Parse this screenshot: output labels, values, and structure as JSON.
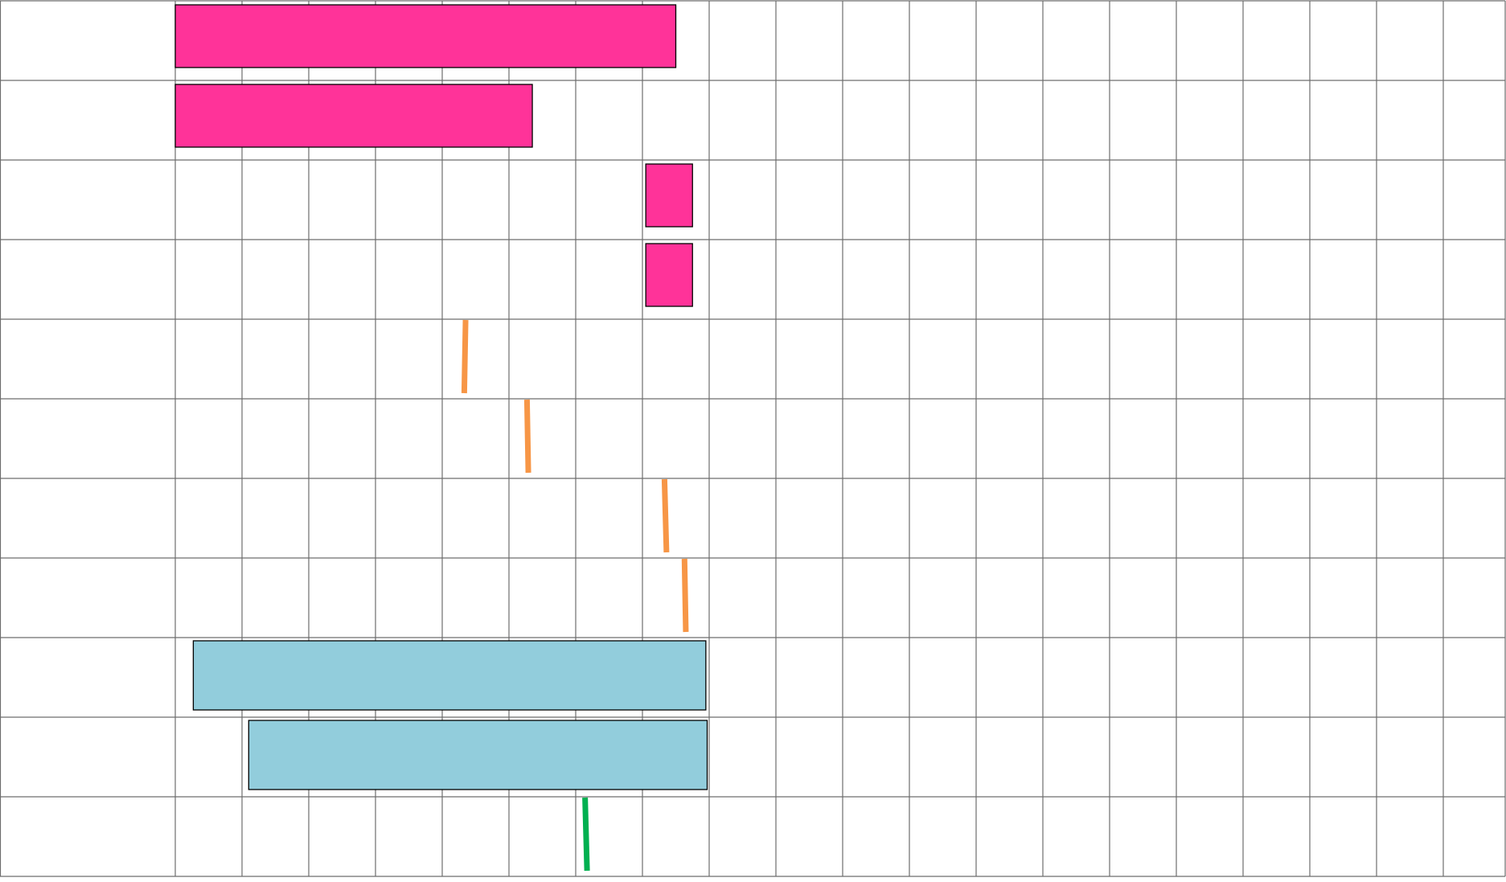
{
  "chart_data": {
    "type": "gantt",
    "title": "",
    "grid": true,
    "row_count": 11,
    "column_count": 20,
    "colors": {
      "pink": "#FF3399",
      "orange": "#F79646",
      "light_blue": "#92CDDC",
      "green": "#00B050",
      "bar_border": "#000000",
      "grid_line": "#6d6d6d",
      "background": "#ffffff"
    },
    "tasks": [
      {
        "row": 1,
        "kind": "bar",
        "start": 0.0,
        "end": 7.5,
        "color": "pink"
      },
      {
        "row": 2,
        "kind": "bar",
        "start": 0.0,
        "end": 5.35,
        "color": "pink"
      },
      {
        "row": 3,
        "kind": "bar",
        "start": 7.05,
        "end": 7.75,
        "color": "pink"
      },
      {
        "row": 4,
        "kind": "bar",
        "start": 7.05,
        "end": 7.75,
        "color": "pink"
      },
      {
        "row": 5,
        "kind": "milestone",
        "start": 4.35,
        "end": 4.33,
        "color": "orange"
      },
      {
        "row": 6,
        "kind": "milestone",
        "start": 5.27,
        "end": 5.29,
        "color": "orange"
      },
      {
        "row": 7,
        "kind": "milestone",
        "start": 7.33,
        "end": 7.36,
        "color": "orange"
      },
      {
        "row": 8,
        "kind": "milestone",
        "start": 7.63,
        "end": 7.65,
        "color": "orange"
      },
      {
        "row": 9,
        "kind": "bar",
        "start": 0.27,
        "end": 7.95,
        "color": "light_blue"
      },
      {
        "row": 10,
        "kind": "bar",
        "start": 1.1,
        "end": 7.97,
        "color": "light_blue"
      },
      {
        "row": 11,
        "kind": "milestone",
        "start": 6.14,
        "end": 6.17,
        "color": "green"
      }
    ]
  }
}
